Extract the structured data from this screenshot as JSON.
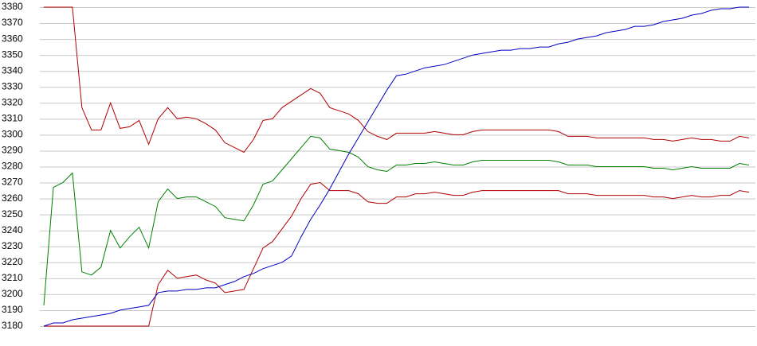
{
  "chart_data": {
    "type": "line",
    "ylim": [
      3180,
      3380
    ],
    "yticks": [
      3180,
      3190,
      3200,
      3210,
      3220,
      3230,
      3240,
      3250,
      3260,
      3270,
      3280,
      3290,
      3300,
      3310,
      3320,
      3330,
      3340,
      3350,
      3360,
      3370,
      3380
    ],
    "grid": true,
    "series": [
      {
        "color": "#b00000",
        "values": [
          3380,
          3380,
          3380,
          3380,
          3317,
          3303,
          3303,
          3320,
          3304,
          3305,
          3309,
          3294,
          3310,
          3317,
          3310,
          3311,
          3310,
          3307,
          3303,
          3295,
          3292,
          3289,
          3297,
          3309,
          3310,
          3317,
          3321,
          3325,
          3329,
          3326,
          3317,
          3315,
          3313,
          3309,
          3302,
          3299,
          3297,
          3301,
          3301,
          3301,
          3301,
          3302,
          3301,
          3300,
          3300,
          3302,
          3303,
          3303,
          3303,
          3303,
          3303,
          3303,
          3303,
          3303,
          3302,
          3299,
          3299,
          3299,
          3298,
          3298,
          3298,
          3298,
          3298,
          3298,
          3297,
          3297,
          3296,
          3297,
          3298,
          3297,
          3297,
          3296,
          3296,
          3299,
          3298
        ]
      },
      {
        "color": "#008000",
        "values": [
          3193,
          3267,
          3270,
          3276,
          3214,
          3212,
          3217,
          3240,
          3229,
          3236,
          3242,
          3229,
          3258,
          3266,
          3260,
          3261,
          3261,
          3258,
          3255,
          3248,
          3247,
          3246,
          3256,
          3269,
          3271,
          3278,
          3285,
          3292,
          3299,
          3298,
          3291,
          3290,
          3289,
          3286,
          3280,
          3278,
          3277,
          3281,
          3281,
          3282,
          3282,
          3283,
          3282,
          3281,
          3281,
          3283,
          3284,
          3284,
          3284,
          3284,
          3284,
          3284,
          3284,
          3284,
          3283,
          3281,
          3281,
          3281,
          3280,
          3280,
          3280,
          3280,
          3280,
          3280,
          3279,
          3279,
          3278,
          3279,
          3280,
          3279,
          3279,
          3279,
          3279,
          3282,
          3281
        ]
      },
      {
        "color": "#b00000",
        "values": [
          3180,
          3180,
          3180,
          3180,
          3180,
          3180,
          3180,
          3180,
          3180,
          3180,
          3180,
          3180,
          3206,
          3215,
          3210,
          3211,
          3212,
          3209,
          3207,
          3201,
          3202,
          3203,
          3216,
          3229,
          3233,
          3241,
          3249,
          3260,
          3269,
          3270,
          3265,
          3265,
          3265,
          3263,
          3258,
          3257,
          3257,
          3261,
          3261,
          3263,
          3263,
          3264,
          3263,
          3262,
          3262,
          3264,
          3265,
          3265,
          3265,
          3265,
          3265,
          3265,
          3265,
          3265,
          3265,
          3263,
          3263,
          3263,
          3262,
          3262,
          3262,
          3262,
          3262,
          3262,
          3261,
          3261,
          3260,
          3261,
          3262,
          3261,
          3261,
          3262,
          3262,
          3265,
          3264
        ]
      },
      {
        "color": "#0000c0",
        "values": [
          3180,
          3182,
          3182,
          3184,
          3185,
          3186,
          3187,
          3188,
          3190,
          3191,
          3192,
          3193,
          3201,
          3202,
          3202,
          3203,
          3203,
          3204,
          3204,
          3206,
          3208,
          3211,
          3213,
          3216,
          3218,
          3220,
          3224,
          3236,
          3247,
          3256,
          3266,
          3277,
          3288,
          3298,
          3308,
          3318,
          3328,
          3337,
          3338,
          3340,
          3342,
          3343,
          3344,
          3346,
          3348,
          3350,
          3351,
          3352,
          3353,
          3353,
          3354,
          3354,
          3355,
          3355,
          3357,
          3358,
          3360,
          3361,
          3362,
          3364,
          3365,
          3366,
          3368,
          3368,
          3369,
          3371,
          3372,
          3373,
          3375,
          3376,
          3378,
          3379,
          3379,
          3380,
          3380
        ]
      }
    ]
  }
}
